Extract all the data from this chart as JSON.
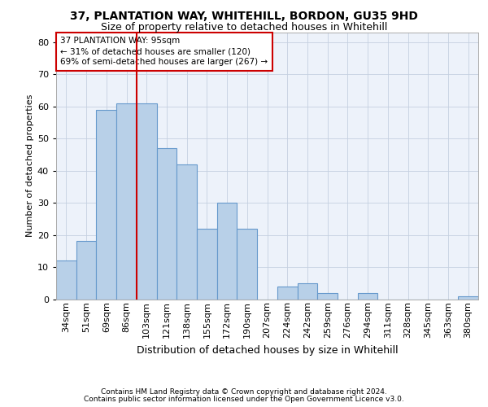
{
  "title1": "37, PLANTATION WAY, WHITEHILL, BORDON, GU35 9HD",
  "title2": "Size of property relative to detached houses in Whitehill",
  "xlabel": "Distribution of detached houses by size in Whitehill",
  "ylabel": "Number of detached properties",
  "categories": [
    "34sqm",
    "51sqm",
    "69sqm",
    "86sqm",
    "103sqm",
    "121sqm",
    "138sqm",
    "155sqm",
    "172sqm",
    "190sqm",
    "207sqm",
    "224sqm",
    "242sqm",
    "259sqm",
    "276sqm",
    "294sqm",
    "311sqm",
    "328sqm",
    "345sqm",
    "363sqm",
    "380sqm"
  ],
  "values": [
    12,
    18,
    59,
    61,
    61,
    47,
    42,
    22,
    30,
    22,
    0,
    4,
    5,
    2,
    0,
    2,
    0,
    0,
    0,
    0,
    1
  ],
  "bar_color": "#b8d0e8",
  "bar_edge_color": "#6699cc",
  "vline_x": 3.5,
  "vline_color": "#cc0000",
  "annotation_text": "37 PLANTATION WAY: 95sqm\n← 31% of detached houses are smaller (120)\n69% of semi-detached houses are larger (267) →",
  "annotation_box_color": "#cc0000",
  "ylim": [
    0,
    83
  ],
  "yticks": [
    0,
    10,
    20,
    30,
    40,
    50,
    60,
    70,
    80
  ],
  "footer1": "Contains HM Land Registry data © Crown copyright and database right 2024.",
  "footer2": "Contains public sector information licensed under the Open Government Licence v3.0.",
  "bg_color": "#edf2fa",
  "grid_color": "#c5d0e0",
  "title1_fontsize": 10,
  "title2_fontsize": 9,
  "ylabel_fontsize": 8,
  "xlabel_fontsize": 9,
  "tick_fontsize": 8,
  "footer_fontsize": 6.5,
  "annot_fontsize": 7.5
}
